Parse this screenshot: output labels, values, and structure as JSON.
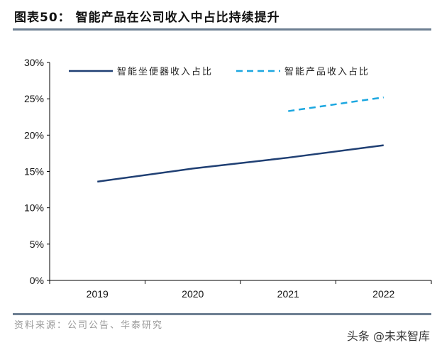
{
  "title": "图表50：  智能产品在公司收入中占比持续提升",
  "source": "资料来源：公司公告、华泰研究",
  "watermark": "头条 @未来智库",
  "chart_data": {
    "type": "line",
    "categories": [
      "2019",
      "2020",
      "2021",
      "2022"
    ],
    "ylim": [
      0,
      30
    ],
    "yticks": [
      "0%",
      "5%",
      "10%",
      "15%",
      "20%",
      "25%",
      "30%"
    ],
    "legend_position": "top",
    "series": [
      {
        "name": "智能坐便器收入占比",
        "values": [
          13.6,
          15.4,
          16.9,
          18.6
        ],
        "color": "#1f3f73",
        "style": "solid"
      },
      {
        "name": "智能产品收入占比",
        "values": [
          null,
          null,
          23.3,
          25.2
        ],
        "color": "#1ca7e0",
        "style": "dashed"
      }
    ]
  }
}
